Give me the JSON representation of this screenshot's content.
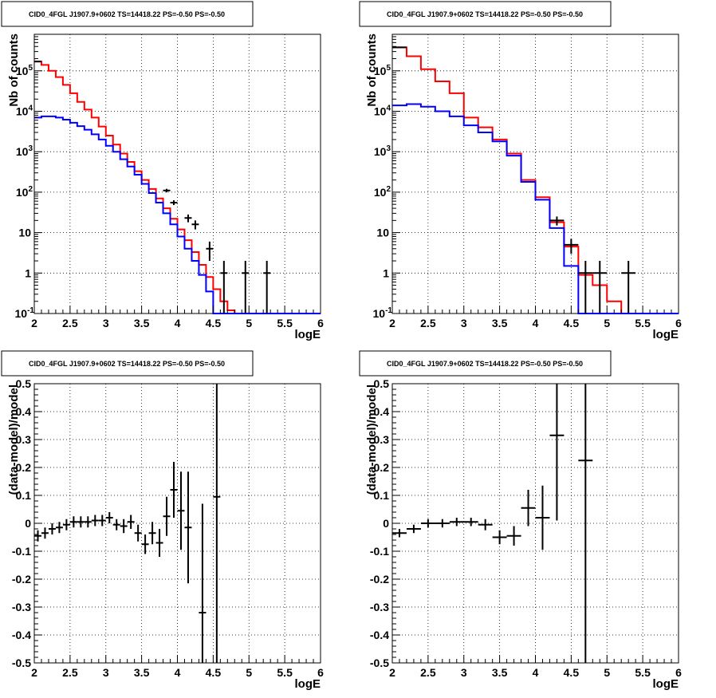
{
  "chart_data": [
    {
      "type": "line",
      "title": "CID0_4FGL J1907.9+0602 TS=14418.22 PS=-0.50 PS=-0.50",
      "xlabel": "logE",
      "ylabel": "Nb of counts",
      "xlim": [
        2,
        6
      ],
      "ylim": [
        0.1,
        800000
      ],
      "yscale": "log",
      "grid": true,
      "x_ticks": [
        "2",
        "2.5",
        "3",
        "3.5",
        "4",
        "4.5",
        "5",
        "5.5",
        "6"
      ],
      "y_ticks": [
        "10^-1",
        "1",
        "10",
        "10^2",
        "10^3",
        "10^4",
        "10^5"
      ],
      "bin_edges": [
        2.0,
        2.1,
        2.2,
        2.3,
        2.4,
        2.5,
        2.6,
        2.7,
        2.8,
        2.9,
        3.0,
        3.1,
        3.2,
        3.3,
        3.4,
        3.5,
        3.6,
        3.7,
        3.8,
        3.9,
        4.0,
        4.1,
        4.2,
        4.3,
        4.4,
        4.5,
        4.6,
        4.7,
        4.8,
        4.9,
        5.0,
        5.1,
        5.2,
        5.3,
        5.4,
        5.5,
        5.6,
        5.7,
        5.8,
        5.9,
        6.0
      ],
      "series": [
        {
          "color": "#ff0000",
          "values": [
            170000,
            140000,
            100000,
            70000,
            45000,
            28000,
            17000,
            11000,
            7000,
            4200,
            2500,
            1500,
            900,
            560,
            330,
            200,
            120,
            70,
            40,
            22,
            12,
            6.5,
            3.3,
            1.6,
            0.8,
            0.4,
            0.2,
            0.12,
            0.1,
            0.1,
            0.1,
            0.1,
            0.1,
            0.1,
            0.1,
            0.1,
            0.1,
            0.1,
            0.1,
            0.1
          ]
        },
        {
          "color": "#0000ff",
          "values": [
            7000,
            7500,
            7500,
            7000,
            6200,
            5200,
            4300,
            3500,
            2700,
            2000,
            1400,
            1000,
            650,
            430,
            270,
            160,
            95,
            55,
            30,
            16,
            8,
            4,
            2,
            0.9,
            0.35,
            0.1,
            0.1,
            0.1,
            0.1,
            0.1,
            0.1,
            0.1,
            0.1,
            0.1,
            0.1,
            0.1,
            0.1,
            0.1,
            0.1,
            0.1
          ]
        },
        {
          "color": "#000000",
          "style": "points",
          "points": [
            {
              "x": 2.05,
              "y": 170000,
              "xerr": 0.05,
              "ylo": 169500,
              "yhi": 170500
            },
            {
              "x": 3.85,
              "y": 110,
              "xerr": 0.05,
              "ylo": 99,
              "yhi": 121
            },
            {
              "x": 3.95,
              "y": 55,
              "xerr": 0.05,
              "ylo": 48,
              "yhi": 63
            },
            {
              "x": 4.15,
              "y": 23,
              "xerr": 0.05,
              "ylo": 18,
              "yhi": 28
            },
            {
              "x": 4.25,
              "y": 16,
              "xerr": 0.05,
              "ylo": 12,
              "yhi": 20
            },
            {
              "x": 4.45,
              "y": 4,
              "xerr": 0.05,
              "ylo": 2,
              "yhi": 6
            },
            {
              "x": 4.65,
              "y": 1,
              "xerr": 0.05,
              "ylo": 0.1,
              "yhi": 2
            },
            {
              "x": 4.95,
              "y": 1,
              "xerr": 0.05,
              "ylo": 0.1,
              "yhi": 2
            },
            {
              "x": 5.25,
              "y": 1,
              "xerr": 0.05,
              "ylo": 0.1,
              "yhi": 2
            }
          ]
        }
      ]
    },
    {
      "type": "line",
      "title": "CID0_4FGL J1907.9+0602 TS=14418.22 PS=-0.50 PS=-0.50",
      "xlabel": "logE",
      "ylabel": "Nb of counts",
      "xlim": [
        2,
        6
      ],
      "ylim": [
        0.1,
        800000
      ],
      "yscale": "log",
      "grid": true,
      "x_ticks": [
        "2",
        "2.5",
        "3",
        "3.5",
        "4",
        "4.5",
        "5",
        "5.5",
        "6"
      ],
      "y_ticks": [
        "10^-1",
        "1",
        "10",
        "10^2",
        "10^3",
        "10^4",
        "10^5"
      ],
      "bin_edges": [
        2.0,
        2.2,
        2.4,
        2.6,
        2.8,
        3.0,
        3.2,
        3.4,
        3.6,
        3.8,
        4.0,
        4.2,
        4.4,
        4.6,
        4.8,
        5.0,
        5.2,
        5.4,
        5.6,
        5.8,
        6.0
      ],
      "series": [
        {
          "color": "#ff0000",
          "values": [
            380000,
            230000,
            110000,
            55000,
            28000,
            7000,
            4000,
            2000,
            900,
            200,
            75,
            18,
            4.5,
            0.9,
            0.5,
            0.2,
            0.1,
            0.1,
            0.1,
            0.1
          ]
        },
        {
          "color": "#0000ff",
          "values": [
            14000,
            15000,
            13000,
            10000,
            7500,
            4500,
            3000,
            1800,
            800,
            180,
            65,
            13,
            1.5,
            0.1,
            0.1,
            0.1,
            0.1,
            0.1,
            0.1,
            0.1
          ]
        },
        {
          "color": "#000000",
          "style": "points",
          "points": [
            {
              "x": 2.1,
              "y": 380000,
              "xerr": 0.1,
              "ylo": 379000,
              "yhi": 381000
            },
            {
              "x": 4.3,
              "y": 20,
              "xerr": 0.1,
              "ylo": 15,
              "yhi": 25
            },
            {
              "x": 4.5,
              "y": 5,
              "xerr": 0.1,
              "ylo": 3,
              "yhi": 7
            },
            {
              "x": 4.7,
              "y": 1,
              "xerr": 0.1,
              "ylo": 0.1,
              "yhi": 2
            },
            {
              "x": 4.9,
              "y": 1,
              "xerr": 0.1,
              "ylo": 0.1,
              "yhi": 2
            },
            {
              "x": 5.3,
              "y": 1,
              "xerr": 0.1,
              "ylo": 0.1,
              "yhi": 2
            }
          ]
        }
      ]
    },
    {
      "type": "scatter",
      "title": "CID0_4FGL J1907.9+0602 TS=14418.22 PS=-0.50 PS=-0.50",
      "xlabel": "logE",
      "ylabel": "(data-model)/model",
      "xlim": [
        2,
        6
      ],
      "ylim": [
        -0.5,
        0.5
      ],
      "grid": true,
      "x_ticks": [
        "2",
        "2.5",
        "3",
        "3.5",
        "4",
        "4.5",
        "5",
        "5.5",
        "6"
      ],
      "y_ticks": [
        "-0.5",
        "-0.4",
        "-0.3",
        "-0.2",
        "-0.1",
        "0",
        "0.1",
        "0.2",
        "0.3",
        "0.4",
        "0.5"
      ],
      "series": [
        {
          "color": "#000000",
          "points": [
            {
              "x": 2.05,
              "y": -0.045,
              "xerr": 0.05,
              "yerr": 0.02
            },
            {
              "x": 2.15,
              "y": -0.035,
              "xerr": 0.05,
              "yerr": 0.02
            },
            {
              "x": 2.25,
              "y": -0.02,
              "xerr": 0.05,
              "yerr": 0.02
            },
            {
              "x": 2.35,
              "y": -0.015,
              "xerr": 0.05,
              "yerr": 0.02
            },
            {
              "x": 2.45,
              "y": -0.005,
              "xerr": 0.05,
              "yerr": 0.02
            },
            {
              "x": 2.55,
              "y": 0.005,
              "xerr": 0.05,
              "yerr": 0.02
            },
            {
              "x": 2.65,
              "y": 0.005,
              "xerr": 0.05,
              "yerr": 0.02
            },
            {
              "x": 2.75,
              "y": 0.005,
              "xerr": 0.05,
              "yerr": 0.02
            },
            {
              "x": 2.85,
              "y": 0.01,
              "xerr": 0.05,
              "yerr": 0.02
            },
            {
              "x": 2.95,
              "y": 0.01,
              "xerr": 0.05,
              "yerr": 0.02
            },
            {
              "x": 3.05,
              "y": 0.02,
              "xerr": 0.05,
              "yerr": 0.02
            },
            {
              "x": 3.15,
              "y": -0.005,
              "xerr": 0.05,
              "yerr": 0.02
            },
            {
              "x": 3.25,
              "y": -0.01,
              "xerr": 0.05,
              "yerr": 0.025
            },
            {
              "x": 3.35,
              "y": 0.005,
              "xerr": 0.05,
              "yerr": 0.025
            },
            {
              "x": 3.45,
              "y": -0.035,
              "xerr": 0.05,
              "yerr": 0.03
            },
            {
              "x": 3.55,
              "y": -0.075,
              "xerr": 0.05,
              "yerr": 0.035
            },
            {
              "x": 3.65,
              "y": -0.035,
              "xerr": 0.05,
              "yerr": 0.04
            },
            {
              "x": 3.75,
              "y": -0.07,
              "xerr": 0.05,
              "yerr": 0.05
            },
            {
              "x": 3.85,
              "y": 0.025,
              "xerr": 0.05,
              "yerr": 0.07
            },
            {
              "x": 3.95,
              "y": 0.12,
              "xerr": 0.05,
              "yerr": 0.1
            },
            {
              "x": 4.05,
              "y": 0.045,
              "xerr": 0.05,
              "yerr": 0.14
            },
            {
              "x": 4.15,
              "y": -0.015,
              "xerr": 0.05,
              "yerr": 0.2
            },
            {
              "x": 4.35,
              "y": -0.32,
              "xerr": 0.05,
              "yerr": 0.39
            },
            {
              "x": 4.55,
              "y": 0.095,
              "xerr": 0.05,
              "yerr": 0.6
            }
          ]
        }
      ]
    },
    {
      "type": "scatter",
      "title": "CID0_4FGL J1907.9+0602 TS=14418.22 PS=-0.50 PS=-0.50",
      "xlabel": "logE",
      "ylabel": "(data-model)/model",
      "xlim": [
        2,
        6
      ],
      "ylim": [
        -0.5,
        0.5
      ],
      "grid": true,
      "x_ticks": [
        "2",
        "2.5",
        "3",
        "3.5",
        "4",
        "4.5",
        "5",
        "5.5",
        "6"
      ],
      "y_ticks": [
        "-0.5",
        "-0.4",
        "-0.3",
        "-0.2",
        "-0.1",
        "0",
        "0.1",
        "0.2",
        "0.3",
        "0.4",
        "0.5"
      ],
      "series": [
        {
          "color": "#000000",
          "points": [
            {
              "x": 2.1,
              "y": -0.035,
              "xerr": 0.1,
              "yerr": 0.015
            },
            {
              "x": 2.3,
              "y": -0.02,
              "xerr": 0.1,
              "yerr": 0.015
            },
            {
              "x": 2.5,
              "y": 0.0,
              "xerr": 0.1,
              "yerr": 0.015
            },
            {
              "x": 2.7,
              "y": 0.0,
              "xerr": 0.1,
              "yerr": 0.015
            },
            {
              "x": 2.9,
              "y": 0.005,
              "xerr": 0.1,
              "yerr": 0.015
            },
            {
              "x": 3.1,
              "y": 0.005,
              "xerr": 0.1,
              "yerr": 0.015
            },
            {
              "x": 3.3,
              "y": -0.005,
              "xerr": 0.1,
              "yerr": 0.02
            },
            {
              "x": 3.5,
              "y": -0.05,
              "xerr": 0.1,
              "yerr": 0.025
            },
            {
              "x": 3.7,
              "y": -0.045,
              "xerr": 0.1,
              "yerr": 0.035
            },
            {
              "x": 3.9,
              "y": 0.055,
              "xerr": 0.1,
              "yerr": 0.065
            },
            {
              "x": 4.1,
              "y": 0.02,
              "xerr": 0.1,
              "yerr": 0.115
            },
            {
              "x": 4.3,
              "y": 0.315,
              "xerr": 0.1,
              "yerr": 0.305
            },
            {
              "x": 4.7,
              "y": 0.225,
              "xerr": 0.1,
              "yerr": 0.75
            }
          ]
        }
      ]
    }
  ]
}
